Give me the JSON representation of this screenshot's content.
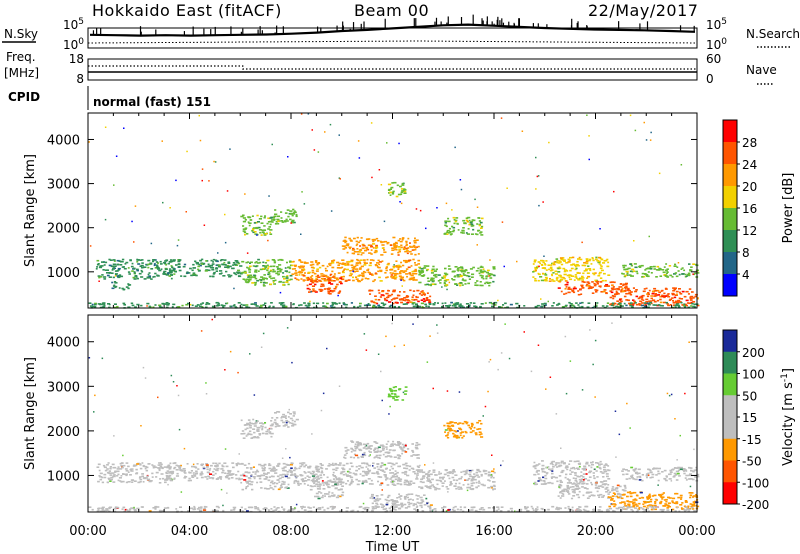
{
  "header": {
    "station": "Hokkaido East (fitACF)",
    "beam": "Beam 00",
    "date": "22/May/2017"
  },
  "panels": {
    "nsky": {
      "label": "N.Sky",
      "right_label": "N.Search",
      "left_ticks": [
        "10^5",
        "10^0"
      ],
      "right_ticks": [
        "10^5",
        "10^0"
      ],
      "left_series": [
        3.2,
        3.1,
        3.0,
        3.1,
        3.0,
        3.1,
        3.2,
        3.3,
        3.5,
        3.8,
        4.2,
        4.5,
        4.9,
        5.3,
        5.7,
        5.9,
        5.6,
        5.3,
        5.0,
        4.8,
        4.6,
        4.5,
        4.4,
        4.2,
        4.0
      ]
    },
    "freq": {
      "label_line1": "Freq.",
      "label_line2": "[MHz]",
      "right_label": "Nave",
      "left_ticks": [
        "18",
        "8"
      ],
      "right_ticks": [
        "60",
        "0"
      ]
    },
    "cpid": {
      "label": "CPID",
      "text": "normal (fast)  151"
    }
  },
  "colorbar_power": {
    "label": "Power [dB]",
    "ticks": [
      "28",
      "24",
      "20",
      "16",
      "12",
      "8",
      "4"
    ],
    "colors": [
      "#ff0000",
      "#ff5500",
      "#ff9900",
      "#f2d000",
      "#66bb33",
      "#2f8f55",
      "#226688",
      "#0000ff"
    ]
  },
  "colorbar_velocity": {
    "label": "Velocity [m s^-1]",
    "ticks": [
      "200",
      "100",
      "50",
      "15",
      "-15",
      "-50",
      "-100",
      "-200"
    ],
    "colors": [
      "#1a2a99",
      "#2e8b57",
      "#66cc33",
      "#bebebe",
      "#bebebe",
      "#ff9900",
      "#ff5500",
      "#ff0000"
    ]
  },
  "chart_data": [
    {
      "type": "heatmap",
      "title": "",
      "ylabel": "Slant Range [km]",
      "xlabel": "",
      "quantity": "Power [dB]",
      "ylim": [
        180,
        4600
      ],
      "yticks": [
        "1000",
        "2000",
        "3000",
        "4000"
      ],
      "xlim_hours": [
        0,
        24
      ],
      "echo_regions": [
        {
          "x0": 0.3,
          "x1": 3.3,
          "y0": 850,
          "y1": 1300,
          "value": 8
        },
        {
          "x0": 0.9,
          "x1": 1.6,
          "y0": 600,
          "y1": 800,
          "value": 10
        },
        {
          "x0": 3.0,
          "x1": 6.0,
          "y0": 900,
          "y1": 1300,
          "value": 10
        },
        {
          "x0": 6.0,
          "x1": 8.0,
          "y0": 700,
          "y1": 1300,
          "value": 12
        },
        {
          "x0": 6.0,
          "x1": 7.2,
          "y0": 1850,
          "y1": 2300,
          "value": 14
        },
        {
          "x0": 7.2,
          "x1": 8.2,
          "y0": 2100,
          "y1": 2450,
          "value": 13
        },
        {
          "x0": 8.0,
          "x1": 13.0,
          "y0": 800,
          "y1": 1300,
          "value": 20
        },
        {
          "x0": 8.6,
          "x1": 10.0,
          "y0": 500,
          "y1": 900,
          "value": 26
        },
        {
          "x0": 10.0,
          "x1": 13.0,
          "y0": 1400,
          "y1": 1800,
          "value": 22
        },
        {
          "x0": 11.0,
          "x1": 13.5,
          "y0": 300,
          "y1": 600,
          "value": 27
        },
        {
          "x0": 11.8,
          "x1": 12.5,
          "y0": 2700,
          "y1": 3050,
          "value": 14
        },
        {
          "x0": 13.0,
          "x1": 16.0,
          "y0": 700,
          "y1": 1150,
          "value": 14
        },
        {
          "x0": 14.0,
          "x1": 15.5,
          "y0": 1850,
          "y1": 2250,
          "value": 12
        },
        {
          "x0": 17.5,
          "x1": 20.5,
          "y0": 800,
          "y1": 1350,
          "value": 17
        },
        {
          "x0": 18.5,
          "x1": 21.2,
          "y0": 500,
          "y1": 800,
          "value": 24
        },
        {
          "x0": 20.5,
          "x1": 24.0,
          "y0": 250,
          "y1": 650,
          "value": 27
        },
        {
          "x0": 21.0,
          "x1": 24.0,
          "y0": 900,
          "y1": 1200,
          "value": 14
        },
        {
          "x0": 0.0,
          "x1": 24.0,
          "y0": 200,
          "y1": 320,
          "value": 9
        }
      ]
    },
    {
      "type": "heatmap",
      "title": "",
      "ylabel": "Slant Range [km]",
      "xlabel": "Time UT",
      "quantity": "Velocity [m s^-1]",
      "ylim": [
        180,
        4600
      ],
      "yticks": [
        "1000",
        "2000",
        "3000",
        "4000"
      ],
      "xticks": [
        "00:00",
        "04:00",
        "08:00",
        "12:00",
        "16:00",
        "20:00",
        "00:00"
      ],
      "xlim_hours": [
        0,
        24
      ],
      "echo_regions": [
        {
          "x0": 0.3,
          "x1": 3.3,
          "y0": 850,
          "y1": 1300,
          "value": 0
        },
        {
          "x0": 3.0,
          "x1": 6.0,
          "y0": 900,
          "y1": 1300,
          "value": 0
        },
        {
          "x0": 6.0,
          "x1": 8.0,
          "y0": 700,
          "y1": 1300,
          "value": 0
        },
        {
          "x0": 6.0,
          "x1": 7.2,
          "y0": 1850,
          "y1": 2300,
          "value": 0
        },
        {
          "x0": 7.2,
          "x1": 8.2,
          "y0": 2100,
          "y1": 2450,
          "value": 0
        },
        {
          "x0": 8.0,
          "x1": 13.0,
          "y0": 800,
          "y1": 1300,
          "value": 0
        },
        {
          "x0": 8.6,
          "x1": 10.0,
          "y0": 500,
          "y1": 900,
          "value": 0
        },
        {
          "x0": 10.0,
          "x1": 13.0,
          "y0": 1400,
          "y1": 1800,
          "value": 0
        },
        {
          "x0": 11.0,
          "x1": 13.5,
          "y0": 300,
          "y1": 600,
          "value": 0
        },
        {
          "x0": 11.8,
          "x1": 12.5,
          "y0": 2700,
          "y1": 3050,
          "value": 60
        },
        {
          "x0": 13.0,
          "x1": 16.0,
          "y0": 700,
          "y1": 1150,
          "value": 0
        },
        {
          "x0": 14.0,
          "x1": 15.5,
          "y0": 1850,
          "y1": 2250,
          "value": -40
        },
        {
          "x0": 17.5,
          "x1": 20.5,
          "y0": 800,
          "y1": 1350,
          "value": 0
        },
        {
          "x0": 18.5,
          "x1": 21.2,
          "y0": 500,
          "y1": 800,
          "value": 0
        },
        {
          "x0": 20.5,
          "x1": 24.0,
          "y0": 250,
          "y1": 650,
          "value": -40
        },
        {
          "x0": 21.0,
          "x1": 24.0,
          "y0": 900,
          "y1": 1200,
          "value": 0
        },
        {
          "x0": 0.0,
          "x1": 24.0,
          "y0": 200,
          "y1": 320,
          "value": 0
        }
      ]
    }
  ]
}
